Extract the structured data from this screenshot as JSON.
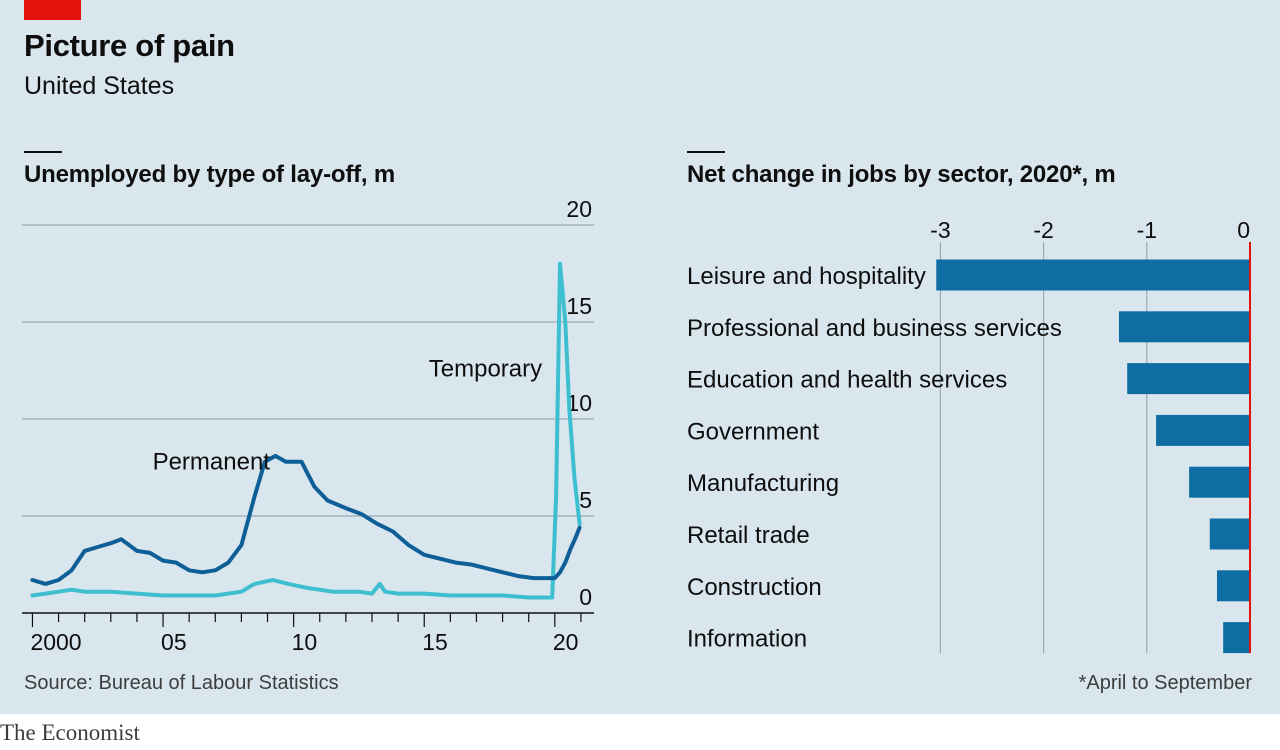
{
  "header": {
    "title": "Picture of pain",
    "subtitle": "United States"
  },
  "colors": {
    "background": "#d9e6ee",
    "permanent": "#0e5f97",
    "temporary": "#3ebfd0",
    "bar": "#0e6ea3",
    "zero_line": "#e3120b",
    "grid": "#98aab6",
    "brand_tag": "#e3120b"
  },
  "footer": {
    "source": "Source: Bureau of Labour Statistics",
    "footnote": "*April to September",
    "brand": "The Economist"
  },
  "chart_data": [
    {
      "type": "line",
      "title": "Unemployed by type of lay-off, m",
      "xlim": [
        1999.6,
        2021.5
      ],
      "ylim": [
        0,
        20
      ],
      "y_ticks": [
        0,
        5,
        10,
        15,
        20
      ],
      "x_tick_labels": [
        {
          "value": 2000,
          "label": "2000"
        },
        {
          "value": 2005,
          "label": "05"
        },
        {
          "value": 2010,
          "label": "10"
        },
        {
          "value": 2015,
          "label": "15"
        },
        {
          "value": 2020,
          "label": "20"
        }
      ],
      "grid": "horizontal",
      "series": [
        {
          "name": "Permanent",
          "color": "#0e5f97",
          "points": [
            [
              2000.0,
              1.7
            ],
            [
              2000.5,
              1.5
            ],
            [
              2001.0,
              1.7
            ],
            [
              2001.5,
              2.2
            ],
            [
              2002.0,
              3.2
            ],
            [
              2002.5,
              3.4
            ],
            [
              2003.0,
              3.6
            ],
            [
              2003.4,
              3.8
            ],
            [
              2004.0,
              3.2
            ],
            [
              2004.5,
              3.1
            ],
            [
              2005.0,
              2.7
            ],
            [
              2005.5,
              2.6
            ],
            [
              2006.0,
              2.2
            ],
            [
              2006.5,
              2.1
            ],
            [
              2007.0,
              2.2
            ],
            [
              2007.5,
              2.6
            ],
            [
              2008.0,
              3.5
            ],
            [
              2008.5,
              6.0
            ],
            [
              2008.9,
              7.8
            ],
            [
              2009.3,
              8.1
            ],
            [
              2009.7,
              7.8
            ],
            [
              2010.3,
              7.8
            ],
            [
              2010.8,
              6.5
            ],
            [
              2011.3,
              5.8
            ],
            [
              2012.0,
              5.4
            ],
            [
              2012.6,
              5.1
            ],
            [
              2013.2,
              4.6
            ],
            [
              2013.8,
              4.2
            ],
            [
              2014.4,
              3.5
            ],
            [
              2015.0,
              3.0
            ],
            [
              2015.6,
              2.8
            ],
            [
              2016.2,
              2.6
            ],
            [
              2016.8,
              2.5
            ],
            [
              2017.4,
              2.3
            ],
            [
              2018.0,
              2.1
            ],
            [
              2018.6,
              1.9
            ],
            [
              2019.2,
              1.8
            ],
            [
              2019.7,
              1.8
            ],
            [
              2020.0,
              1.8
            ],
            [
              2020.2,
              2.1
            ],
            [
              2020.4,
              2.6
            ],
            [
              2020.6,
              3.3
            ],
            [
              2020.8,
              3.9
            ],
            [
              2020.95,
              4.4
            ]
          ]
        },
        {
          "name": "Temporary",
          "color": "#3ebfd0",
          "points": [
            [
              2000.0,
              0.9
            ],
            [
              2000.5,
              1.0
            ],
            [
              2001.0,
              1.1
            ],
            [
              2001.5,
              1.2
            ],
            [
              2002.0,
              1.1
            ],
            [
              2003.0,
              1.1
            ],
            [
              2004.0,
              1.0
            ],
            [
              2005.0,
              0.9
            ],
            [
              2006.0,
              0.9
            ],
            [
              2007.0,
              0.9
            ],
            [
              2008.0,
              1.1
            ],
            [
              2008.5,
              1.5
            ],
            [
              2009.2,
              1.7
            ],
            [
              2009.8,
              1.5
            ],
            [
              2010.5,
              1.3
            ],
            [
              2011.5,
              1.1
            ],
            [
              2012.5,
              1.1
            ],
            [
              2013.0,
              1.0
            ],
            [
              2013.3,
              1.5
            ],
            [
              2013.5,
              1.1
            ],
            [
              2014.0,
              1.0
            ],
            [
              2015.0,
              1.0
            ],
            [
              2016.0,
              0.9
            ],
            [
              2017.0,
              0.9
            ],
            [
              2018.0,
              0.9
            ],
            [
              2019.0,
              0.8
            ],
            [
              2019.9,
              0.8
            ],
            [
              2020.05,
              6.0
            ],
            [
              2020.2,
              18.0
            ],
            [
              2020.4,
              15.0
            ],
            [
              2020.55,
              10.6
            ],
            [
              2020.75,
              7.0
            ],
            [
              2020.95,
              4.6
            ]
          ]
        }
      ]
    },
    {
      "type": "bar",
      "orientation": "horizontal",
      "title": "Net change in jobs by sector, 2020*, m",
      "xlim": [
        -3.0,
        0.0
      ],
      "x_ticks": [
        {
          "value": -3,
          "label": "-3"
        },
        {
          "value": -2,
          "label": "-2"
        },
        {
          "value": -1,
          "label": "-1"
        },
        {
          "value": 0,
          "label": "0"
        }
      ],
      "categories": [
        "Leisure and hospitality",
        "Professional and business services",
        "Education and health services",
        "Government",
        "Manufacturing",
        "Retail trade",
        "Construction",
        "Information"
      ],
      "values": [
        -3.04,
        -1.27,
        -1.19,
        -0.91,
        -0.59,
        -0.39,
        -0.32,
        -0.26
      ]
    }
  ]
}
